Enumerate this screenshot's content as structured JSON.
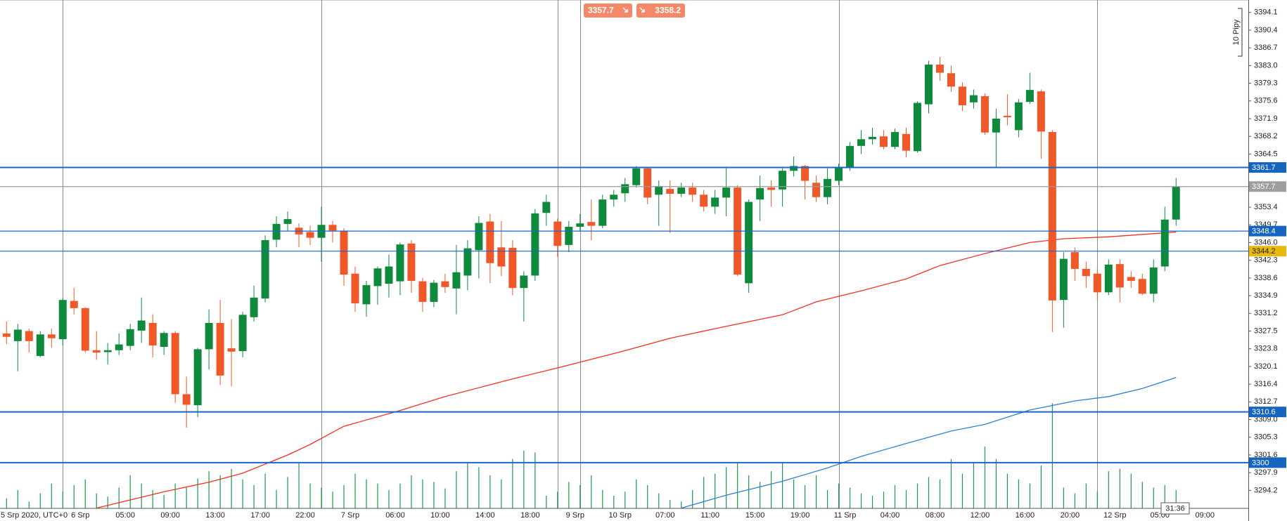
{
  "chart_data": {
    "type": "candlestick",
    "categories": [
      "5 Srp 2020, UTC+0",
      null,
      null,
      null,
      null,
      null,
      "6 Srp",
      null,
      null,
      null,
      "05:00",
      null,
      null,
      null,
      "09:00",
      null,
      null,
      null,
      "13:00",
      null,
      null,
      null,
      "17:00",
      null,
      null,
      null,
      "22:00",
      null,
      null,
      null,
      "7 Srp",
      null,
      null,
      null,
      "06:00",
      null,
      null,
      null,
      "10:00",
      null,
      null,
      null,
      "14:00",
      null,
      null,
      null,
      "18:00",
      null,
      null,
      null,
      "9 Srp",
      null,
      null,
      null,
      "10 Srp",
      null,
      null,
      null,
      "07:00",
      null,
      null,
      null,
      "11:00",
      null,
      null,
      null,
      "15:00",
      null,
      null,
      null,
      "19:00",
      null,
      null,
      null,
      "11 Srp",
      null,
      null,
      null,
      "04:00",
      null,
      null,
      null,
      "08:00",
      null,
      null,
      null,
      "12:00",
      null,
      null,
      null,
      "16:00",
      null,
      null,
      null,
      "20:00",
      null,
      null,
      null,
      "12 Srp",
      null,
      null,
      null,
      "05:00",
      null,
      null,
      null,
      "09:00"
    ],
    "open": [
      3327,
      3325.4,
      3327.5,
      3322.3,
      3326.8,
      3325.8,
      3333.8,
      3332.3,
      3323.5,
      3323.1,
      3323.5,
      3324.4,
      3327.6,
      3329.2,
      3324.2,
      3327.1,
      3314.3,
      3312,
      3323.7,
      3329.2,
      3323.9,
      3323.3,
      3330.4,
      3334.3,
      3346.6,
      3349.9,
      3349.1,
      3348.2,
      3347,
      3349.7,
      3348.5,
      3339.5,
      3333.1,
      3336.9,
      3337.4,
      3337.9,
      3345.8,
      3337.9,
      3333.6,
      3337.9,
      3336.4,
      3339.1,
      3344.4,
      3350.4,
      3345,
      3344.9,
      3336.5,
      3339.1,
      3352.2,
      3350.4,
      3345.5,
      3349.3,
      3350.3,
      3349.5,
      3355,
      3356.3,
      3358,
      3361.5,
      3356,
      3357.2,
      3356.2,
      3357.5,
      3356,
      3353.5,
      3355.4,
      3357.5,
      3337.5,
      3355,
      3357.5,
      3357.1,
      3361,
      3362,
      3358.5,
      3355.5,
      3358.9,
      3361.6,
      3366.2,
      3367.6,
      3368.2,
      3366,
      3368.7,
      3365.1,
      3374.9,
      3383.2,
      3381.4,
      3378.6,
      3375.3,
      3376.6,
      3369,
      3372.5,
      3369.5,
      3375.4,
      3377.6,
      3369.1,
      3334,
      3344,
      3340.5,
      3339.5,
      3335.6,
      3341.5,
      3338.8,
      3338.4,
      3335.3,
      3341,
      3350.8,
      null,
      null
    ],
    "high": [
      3329.5,
      3329,
      3328,
      3327.5,
      3328,
      3334.3,
      3336.5,
      3332.5,
      3327.5,
      3325,
      3327,
      3329,
      3334.5,
      3331,
      3327.5,
      3327.5,
      3318,
      3324,
      3332,
      3334,
      3330,
      3331.5,
      3337,
      3347.5,
      3351.5,
      3352.5,
      3350,
      3349.5,
      3353.5,
      3350.5,
      3349,
      3341,
      3338,
      3341,
      3343.5,
      3346,
      3346.5,
      3338.6,
      3338.2,
      3339.5,
      3345.5,
      3346.5,
      3351.5,
      3352,
      3350.5,
      3346.5,
      3340,
      3353,
      3356,
      3351,
      3350.5,
      3352,
      3355,
      3356,
      3357,
      3359.5,
      3362,
      3361.7,
      3359,
      3359,
      3358.5,
      3358.5,
      3357,
      3357,
      3361.5,
      3358,
      3355,
      3360,
      3359,
      3361.5,
      3364,
      3362.2,
      3360,
      3361.5,
      3362.5,
      3367,
      3369.5,
      3370,
      3369.5,
      3369.8,
      3370,
      3375.5,
      3384,
      3384.8,
      3383,
      3379.5,
      3378,
      3377.2,
      3374,
      3377,
      3376,
      3381.5,
      3378,
      3369.5,
      3344,
      3345,
      3342,
      3340.5,
      3342.5,
      3342.5,
      3340,
      3339.5,
      3342.5,
      3353.5,
      3359.5,
      null,
      null
    ],
    "low": [
      3324.8,
      3319.1,
      3323,
      3322,
      3324,
      3324.5,
      3331,
      3323,
      3321.5,
      3320.5,
      3322.5,
      3323.5,
      3325,
      3322,
      3322.5,
      3312.5,
      3307.3,
      3309.5,
      3319.5,
      3316.2,
      3316,
      3322,
      3329.5,
      3333.5,
      3345,
      3348.5,
      3345,
      3345.5,
      3342,
      3346,
      3337,
      3331.5,
      3330.5,
      3333,
      3334.5,
      3335,
      3335.5,
      3331.5,
      3332.5,
      3335.5,
      3331,
      3336,
      3338.5,
      3337.5,
      3339,
      3335,
      3329.5,
      3338,
      3349.5,
      3343,
      3344,
      3348.5,
      3346.5,
      3349,
      3353.5,
      3354.5,
      3357.5,
      3354,
      3349.5,
      3348,
      3355.5,
      3354.5,
      3352.5,
      3352,
      3351.5,
      3339,
      3335.5,
      3350.5,
      3353.5,
      3353.5,
      3359.8,
      3355,
      3354.5,
      3354,
      3358,
      3361,
      3364.5,
      3366.5,
      3365.5,
      3365.5,
      3363.8,
      3364.8,
      3373,
      3379.8,
      3377.5,
      3373.5,
      3374,
      3368.5,
      3361.7,
      3370.5,
      3368,
      3375,
      3363.5,
      3327.3,
      3328.2,
      3338,
      3336.5,
      3334,
      3335,
      3333.5,
      3336.5,
      3335,
      3333.5,
      3340,
      3349.5,
      null,
      null
    ],
    "close": [
      3326.3,
      3327.8,
      3325.4,
      3326.8,
      3326,
      3334,
      3332.3,
      3323.4,
      3323,
      3323.5,
      3324.7,
      3327.9,
      3329.7,
      3324.5,
      3327.1,
      3314.3,
      3312.1,
      3323.7,
      3329.2,
      3318.2,
      3323.2,
      3330.9,
      3334.5,
      3346.5,
      3349.9,
      3350.9,
      3347.7,
      3347,
      3349.7,
      3348.5,
      3339.3,
      3333.3,
      3337.1,
      3340.6,
      3341,
      3345.6,
      3338,
      3333.6,
      3337.6,
      3336.7,
      3339.8,
      3344.8,
      3350.1,
      3341.7,
      3341,
      3336.5,
      3339.1,
      3352.1,
      3354.5,
      3345.3,
      3349.3,
      3350,
      3349.5,
      3355,
      3356,
      3358.2,
      3361.5,
      3355.4,
      3357.8,
      3356.2,
      3357.5,
      3356,
      3353.5,
      3355.4,
      3357.5,
      3339.3,
      3354.5,
      3357.4,
      3357,
      3361,
      3362,
      3358.9,
      3355.5,
      3359.3,
      3361.6,
      3366.2,
      3367.6,
      3368.1,
      3366,
      3369.1,
      3365.2,
      3375.2,
      3383.2,
      3381.5,
      3378.6,
      3374.7,
      3376.8,
      3369,
      3371.9,
      3372.2,
      3375.3,
      3377.9,
      3369.2,
      3333.9,
      3342.6,
      3340.5,
      3339,
      3335.6,
      3341.4,
      3336.6,
      3338,
      3335.3,
      3340.8,
      3350.8,
      3357.7,
      null,
      null
    ],
    "volume": [
      12,
      22,
      8,
      18,
      30,
      20,
      28,
      35,
      18,
      14,
      25,
      40,
      30,
      22,
      16,
      30,
      25,
      36,
      45,
      40,
      48,
      35,
      28,
      42,
      22,
      38,
      55,
      30,
      25,
      20,
      28,
      42,
      35,
      30,
      22,
      30,
      40,
      35,
      32,
      24,
      45,
      55,
      50,
      40,
      35,
      60,
      70,
      68,
      15,
      20,
      32,
      28,
      40,
      22,
      15,
      20,
      35,
      28,
      18,
      10,
      8,
      22,
      38,
      42,
      50,
      55,
      40,
      32,
      45,
      55,
      35,
      28,
      40,
      22,
      30,
      25,
      18,
      15,
      20,
      28,
      22,
      30,
      38,
      35,
      60,
      42,
      55,
      75,
      60,
      42,
      35,
      30,
      52,
      128,
      25,
      18,
      30,
      20,
      45,
      48,
      42,
      32,
      25,
      28,
      22,
      null,
      null
    ],
    "up_color": "#0f8a3c",
    "down_color": "#f0582a",
    "volume_color": "#1a9a4a",
    "overlays": [
      {
        "color": "#ee3124",
        "x": [
          8,
          14,
          18,
          21,
          25,
          27,
          30,
          35,
          39,
          45,
          49,
          55,
          59,
          64,
          69,
          72,
          76,
          80,
          83,
          87,
          91,
          94,
          98,
          104
        ],
        "values": [
          3290.5,
          3293.9,
          3295.9,
          3297.8,
          3301.6,
          3303.8,
          3307.6,
          3310.9,
          3313.8,
          3317.5,
          3319.8,
          3323.4,
          3326.0,
          3328.5,
          3330.9,
          3333.6,
          3335.9,
          3338.4,
          3341.2,
          3343.7,
          3346.0,
          3346.8,
          3347.2,
          3348.2
        ]
      },
      {
        "color": "#2f7fd1",
        "x": [
          60,
          64,
          69,
          73,
          76,
          80,
          84,
          87,
          91,
          95,
          98,
          101,
          104
        ],
        "values": [
          3290.5,
          3293.2,
          3296.1,
          3298.9,
          3301.3,
          3304.0,
          3306.6,
          3308.0,
          3311.0,
          3312.9,
          3313.8,
          3315.5,
          3317.8
        ]
      }
    ],
    "levels": [
      {
        "value": 3361.7,
        "color": "#1b65c9",
        "tag": "#1565c0"
      },
      {
        "value": 3357.7,
        "color": "#9a9a9a",
        "tag": "#9e9e9e"
      },
      {
        "value": 3348.4,
        "color": "#1b65c9",
        "tag": "#1565c0"
      },
      {
        "value": 3344.2,
        "color": "#1b65c9",
        "tag": "#e8b90c"
      },
      {
        "value": 3310.6,
        "color": "#1b65c9",
        "tag": "#1565c0"
      },
      {
        "value": 3300,
        "color": "#1b65c9",
        "tag": "#1565c0"
      }
    ],
    "separators": [
      5,
      28,
      49,
      51,
      74,
      97
    ],
    "ylim": [
      3290.5,
      3396.7
    ],
    "yticks": [
      3394.1,
      3390.4,
      3386.7,
      {
        "value": 3383,
        "label": "3383.0"
      },
      3379.3,
      3375.6,
      3371.9,
      3368.2,
      3364.5,
      3353.4,
      3349.7,
      {
        "value": 3346,
        "label": "3346.0"
      },
      3342.3,
      3338.6,
      3334.9,
      3331.2,
      3327.5,
      3323.8,
      3320.1,
      3316.4,
      3312.7,
      {
        "value": 3309,
        "label": "3309.0"
      },
      3305.3,
      3301.6,
      3297.9,
      3294.2
    ],
    "sell": 3357.7,
    "buy": 3358.2,
    "timer": "31:36",
    "pip_scale": "10 Pipy"
  }
}
